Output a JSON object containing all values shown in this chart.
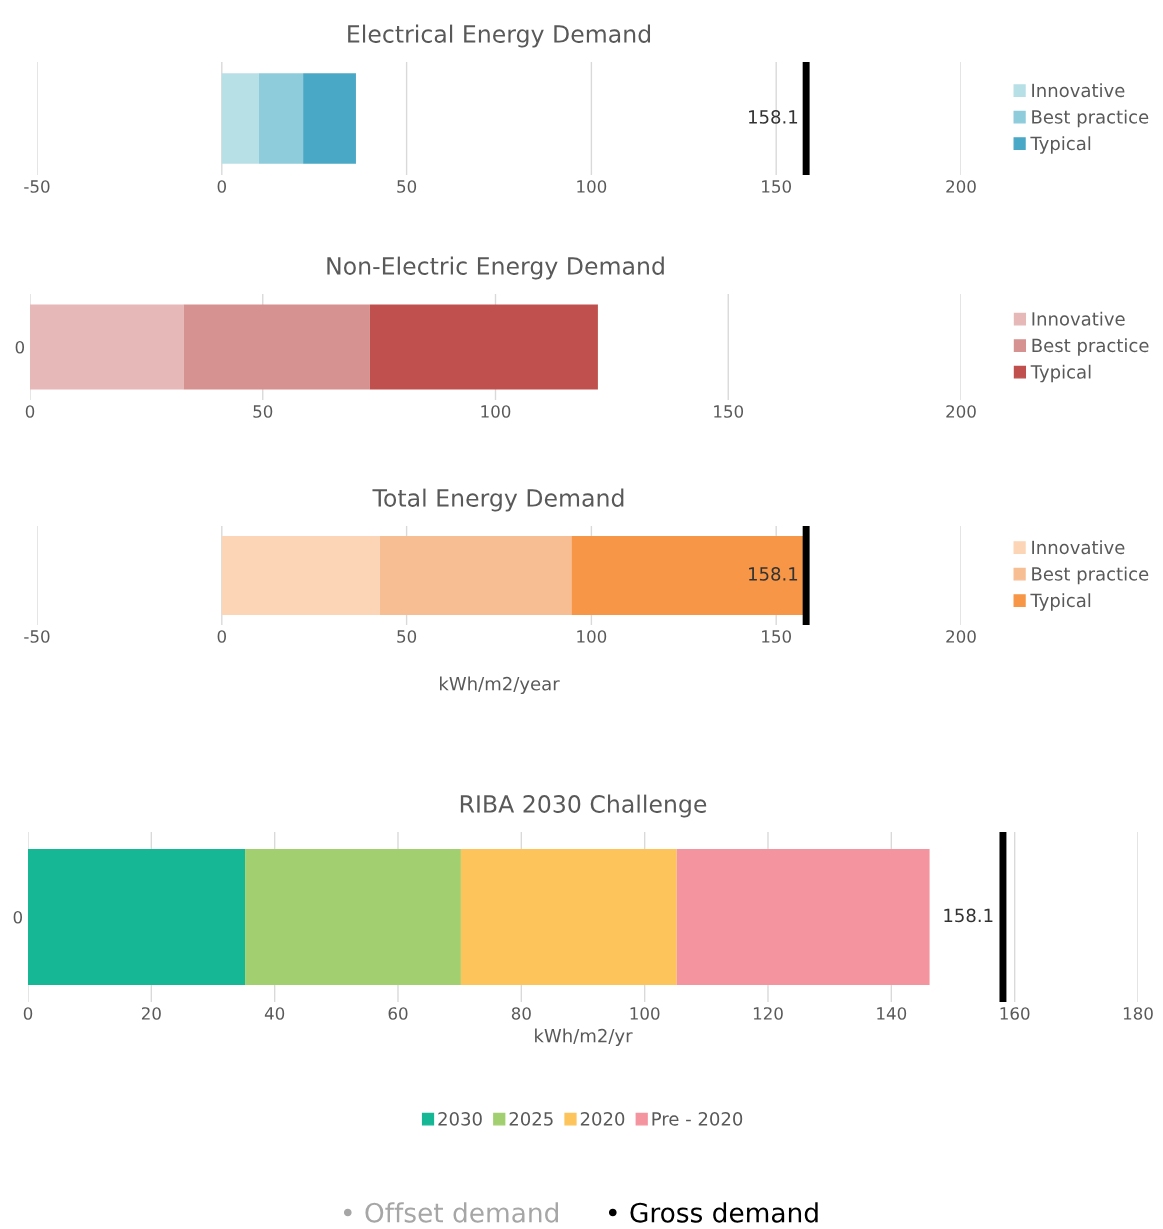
{
  "chart_data": [
    {
      "type": "bar",
      "orientation": "horizontal",
      "stacked": true,
      "title": "Electrical Energy Demand",
      "categories": [
        null
      ],
      "series": [
        {
          "name": "Innovative",
          "color": "#b7dfe6",
          "values": [
            10
          ]
        },
        {
          "name": "Best practice",
          "color": "#8ecbdb",
          "values": [
            12
          ]
        },
        {
          "name": "Typical",
          "color": "#4aa8c7",
          "values": [
            14.3
          ]
        }
      ],
      "xlim": [
        -50,
        200
      ],
      "xticks": [
        -50,
        0,
        50,
        100,
        150,
        200
      ],
      "grid": "x",
      "legend": "right",
      "ref_lines": [
        {
          "axis": "x",
          "value": 158.1,
          "label": "158.1",
          "color": "#000000"
        }
      ]
    },
    {
      "type": "bar",
      "orientation": "horizontal",
      "stacked": true,
      "title": "Non-Electric Energy Demand",
      "categories": [
        "0"
      ],
      "series": [
        {
          "name": "Innovative",
          "color": "#e6b8b8",
          "values": [
            33
          ]
        },
        {
          "name": "Best practice",
          "color": "#d69290",
          "values": [
            40
          ]
        },
        {
          "name": "Typical",
          "color": "#c0504d",
          "values": [
            49
          ]
        }
      ],
      "xlim": [
        0,
        200
      ],
      "xticks": [
        0,
        50,
        100,
        150,
        200
      ],
      "grid": "x",
      "legend": "right"
    },
    {
      "type": "bar",
      "orientation": "horizontal",
      "stacked": true,
      "title": "Total Energy Demand",
      "xlabel": "kWh/m2/year",
      "categories": [
        null
      ],
      "series": [
        {
          "name": "Innovative",
          "color": "#fbd5b5",
          "values": [
            42.7
          ]
        },
        {
          "name": "Best practice",
          "color": "#f7be94",
          "values": [
            51.9
          ]
        },
        {
          "name": "Typical",
          "color": "#f79646",
          "values": [
            63.2
          ]
        }
      ],
      "xlim": [
        -50,
        200
      ],
      "xticks": [
        -50,
        0,
        50,
        100,
        150,
        200
      ],
      "grid": "x",
      "legend": "right",
      "ref_lines": [
        {
          "axis": "x",
          "value": 158.1,
          "label": "158.1",
          "color": "#000000"
        }
      ]
    },
    {
      "type": "bar",
      "orientation": "horizontal",
      "stacked": true,
      "title": "RIBA 2030 Challenge",
      "xlabel": "kWh/m2/yr",
      "categories": [
        "0"
      ],
      "series": [
        {
          "name": "2030",
          "color": "#15b795",
          "values": [
            35.2
          ]
        },
        {
          "name": "2025",
          "color": "#a2cf6f",
          "values": [
            35
          ]
        },
        {
          "name": "2020",
          "color": "#fcc45b",
          "values": [
            35
          ]
        },
        {
          "name": "Pre - 2020",
          "color": "#f4949f",
          "values": [
            41
          ]
        }
      ],
      "xlim": [
        0,
        180
      ],
      "xticks": [
        0,
        20,
        40,
        60,
        80,
        100,
        120,
        140,
        160,
        180
      ],
      "grid": "x",
      "legend": "bottom",
      "ref_lines": [
        {
          "axis": "x",
          "value": 158.1,
          "label": "158.1",
          "color": "#000000"
        }
      ],
      "annotations": [
        "• Offset demand",
        "• Gross demand"
      ]
    }
  ]
}
